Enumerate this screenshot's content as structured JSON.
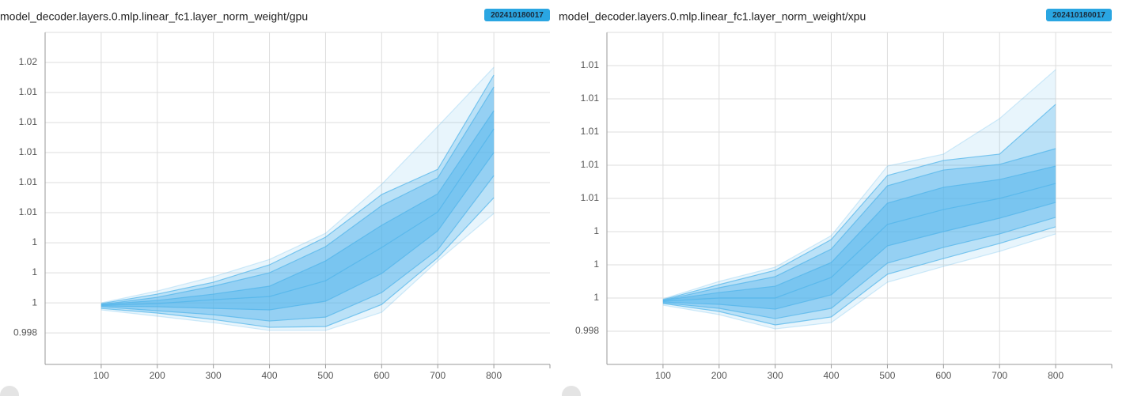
{
  "chart_data": [
    {
      "type": "distribution",
      "title": "model_decoder.layers.0.mlp.linear_fc1.layer_norm_weight/gpu",
      "badge": "202410180017",
      "color": "#4fb3ea",
      "grid": true,
      "x": [
        100,
        200,
        300,
        400,
        500,
        600,
        700,
        800
      ],
      "xlim": [
        0,
        900
      ],
      "xticks": [
        100,
        200,
        300,
        400,
        500,
        600,
        700,
        800
      ],
      "ylim": [
        0.9959,
        1.018
      ],
      "yticks": [
        0.998,
        1,
        {
          "value": 1.002,
          "label": "1"
        },
        {
          "value": 1.004,
          "label": "1"
        },
        {
          "value": 1.006,
          "label": "1.01"
        },
        {
          "value": 1.008,
          "label": "1.01"
        },
        1.01,
        {
          "value": 1.012,
          "label": "1.01"
        },
        {
          "value": 1.014,
          "label": "1.01"
        },
        {
          "value": 1.016,
          "label": "1.02"
        }
      ],
      "series": [
        {
          "values": [
            1.0,
            1.00079,
            1.00174,
            1.00289,
            1.00463,
            1.00789,
            1.01174,
            1.01568
          ]
        },
        {
          "values": [
            0.99995,
            1.00058,
            1.00137,
            1.00253,
            1.00437,
            1.00721,
            1.00889,
            1.01516
          ]
        },
        {
          "values": [
            0.99989,
            1.00037,
            1.00111,
            1.002,
            1.00374,
            1.00647,
            1.00832,
            1.01437
          ]
        },
        {
          "values": [
            0.99989,
            1.00016,
            1.00058,
            1.00111,
            1.00279,
            1.00516,
            1.00726,
            1.01279
          ]
        },
        {
          "values": [
            0.99984,
            0.99995,
            1.00021,
            1.00042,
            1.00147,
            1.00368,
            1.00605,
            1.01158
          ]
        },
        {
          "values": [
            0.99979,
            0.99974,
            0.99963,
            0.99953,
            1.00011,
            1.00195,
            1.00479,
            1.01
          ]
        },
        {
          "values": [
            0.99974,
            0.99947,
            0.99921,
            0.99879,
            0.99905,
            1.00068,
            1.00353,
            1.00847
          ]
        },
        {
          "values": [
            0.99963,
            0.99932,
            0.99889,
            0.99837,
            0.99842,
            0.99989,
            1.003,
            1.007
          ]
        },
        {
          "values": [
            0.99953,
            0.99911,
            0.99868,
            0.99816,
            0.99816,
            0.99937,
            1.00279,
            1.00595
          ]
        }
      ]
    },
    {
      "type": "distribution",
      "title": "model_decoder.layers.0.mlp.linear_fc1.layer_norm_weight/xpu",
      "badge": "202410180017",
      "color": "#4fb3ea",
      "grid": true,
      "x": [
        100,
        200,
        300,
        400,
        500,
        600,
        700,
        800
      ],
      "xlim": [
        0,
        900
      ],
      "xticks": [
        100,
        200,
        300,
        400,
        500,
        600,
        700,
        800
      ],
      "ylim": [
        0.996,
        1.016
      ],
      "yticks": [
        0.998,
        1,
        {
          "value": 1.002,
          "label": "1"
        },
        {
          "value": 1.004,
          "label": "1"
        },
        {
          "value": 1.006,
          "label": "1.01"
        },
        {
          "value": 1.008,
          "label": "1.01"
        },
        1.01,
        {
          "value": 1.012,
          "label": "1.01"
        },
        {
          "value": 1.014,
          "label": "1.01"
        }
      ],
      "series": [
        {
          "values": [
            0.99995,
            1.001,
            1.00186,
            1.00376,
            1.00795,
            1.00867,
            1.01081,
            1.01376
          ]
        },
        {
          "values": [
            0.9999,
            1.00081,
            1.00167,
            1.00352,
            1.00738,
            1.00829,
            1.00867,
            1.01167
          ]
        },
        {
          "values": [
            0.99986,
            1.00062,
            1.00129,
            1.00295,
            1.00676,
            1.00771,
            1.00805,
            1.009
          ]
        },
        {
          "values": [
            0.99986,
            1.00033,
            1.00071,
            1.00214,
            1.00571,
            1.00667,
            1.00714,
            1.00795
          ]
        },
        {
          "values": [
            0.99981,
            1.0,
            1.0,
            1.00124,
            1.00443,
            1.00533,
            1.006,
            1.0069
          ]
        },
        {
          "values": [
            0.99976,
            0.99962,
            0.99933,
            1.00019,
            1.00314,
            1.004,
            1.00481,
            1.00576
          ]
        },
        {
          "values": [
            0.99971,
            0.99938,
            0.99876,
            0.99938,
            1.0021,
            1.00305,
            1.00386,
            1.00486
          ]
        },
        {
          "values": [
            0.99967,
            0.99919,
            0.99838,
            0.99886,
            1.00143,
            1.00238,
            1.00329,
            1.00429
          ]
        },
        {
          "values": [
            0.99957,
            0.999,
            0.99814,
            0.99852,
            1.00095,
            1.0019,
            1.00281,
            1.00386
          ]
        }
      ]
    }
  ]
}
